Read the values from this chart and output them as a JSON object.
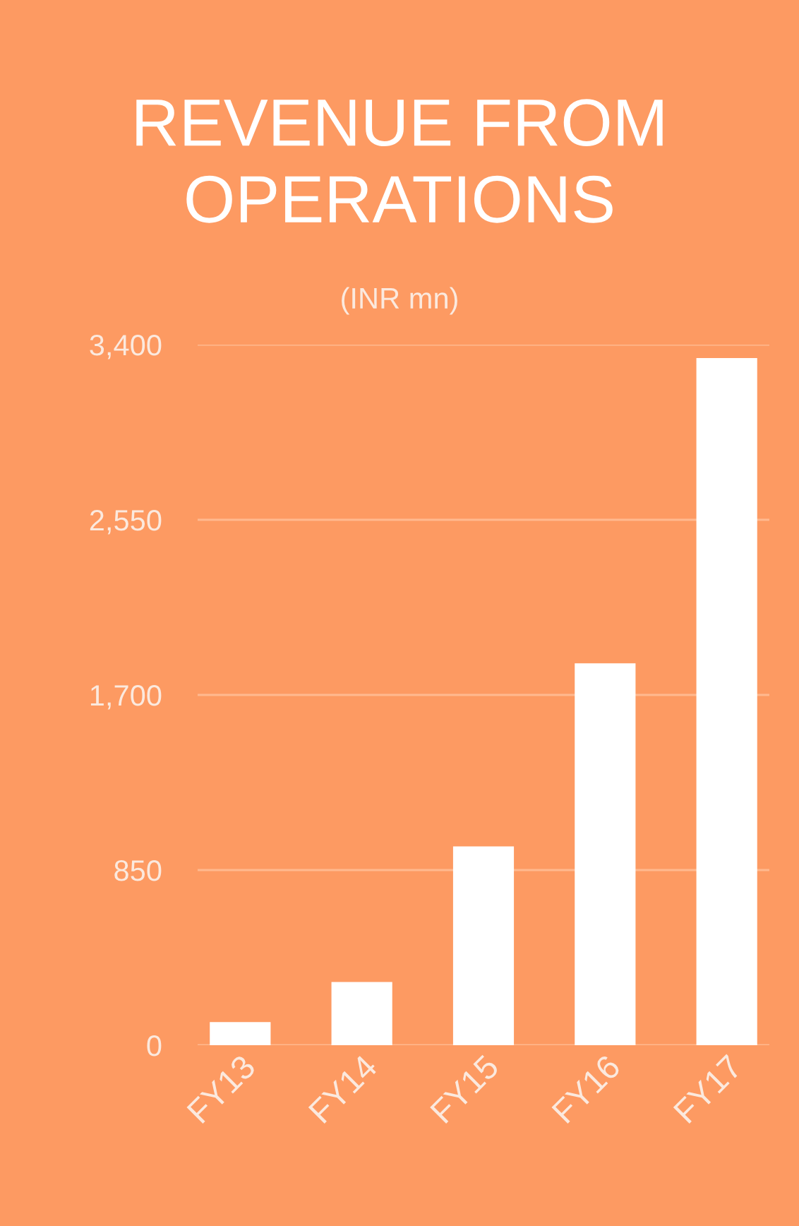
{
  "chart_data": {
    "type": "bar",
    "title": "REVENUE FROM\nOPERATIONS",
    "subtitle": "(INR mn)",
    "categories": [
      "FY13",
      "FY14",
      "FY15",
      "FY16",
      "FY17"
    ],
    "values": [
      112,
      307,
      965,
      1853,
      3335
    ],
    "color": "#ffffff",
    "ylim": [
      0,
      3400
    ],
    "yticks": [
      {
        "value": 0,
        "label": "0"
      },
      {
        "value": 850,
        "label": "850"
      },
      {
        "value": 1700,
        "label": "1,700"
      },
      {
        "value": 2550,
        "label": "2,550"
      },
      {
        "value": 3400,
        "label": "3,400"
      }
    ],
    "grid": "y"
  }
}
